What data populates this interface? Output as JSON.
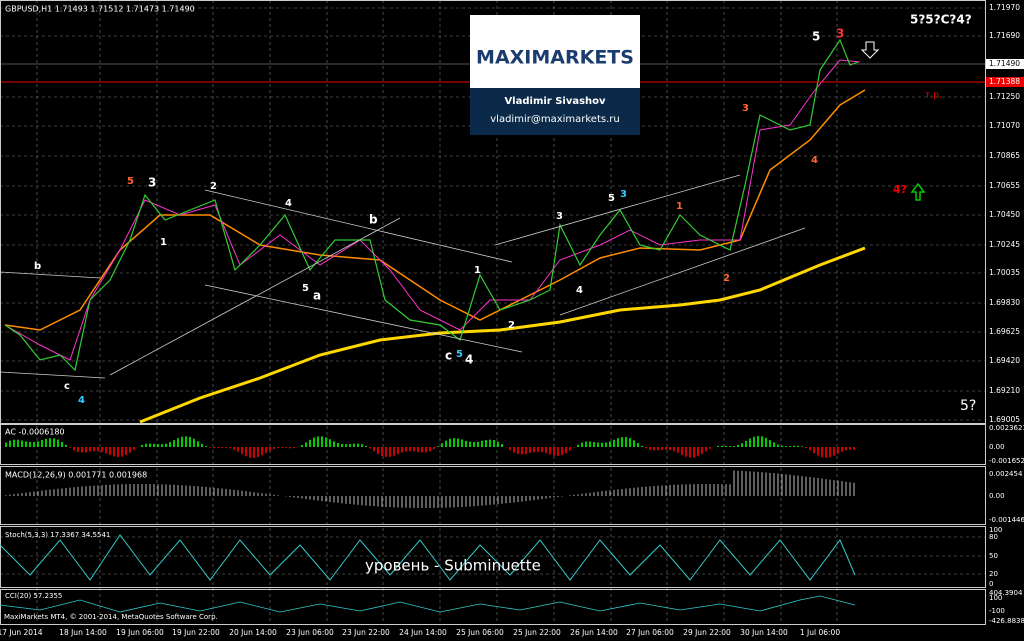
{
  "header": {
    "symbol": "GBPUSD,H1  1.71493 1.71512 1.71473 1.71490"
  },
  "logo": {
    "brand": "MAXIMARKETS",
    "author": "Vladimir Sivashov",
    "email": "vladimir@maximarkets.ru"
  },
  "price_axis": [
    "1.71970",
    "1.71690",
    "1.71490",
    "1.71388",
    "1.71250",
    "1.71070",
    "1.70865",
    "1.70655",
    "1.70450",
    "1.70245",
    "1.70035",
    "1.69830",
    "1.69625",
    "1.69420",
    "1.69210",
    "1.69005"
  ],
  "time_axis": [
    "17 Jun 2014",
    "18 Jun 14:00",
    "19 Jun 06:00",
    "19 Jun 22:00",
    "20 Jun 14:00",
    "23 Jun 06:00",
    "23 Jun 22:00",
    "24 Jun 14:00",
    "25 Jun 06:00",
    "25 Jun 22:00",
    "26 Jun 14:00",
    "27 Jun 06:00",
    "29 Jun 22:00",
    "30 Jun 14:00",
    "1 Jul 06:00"
  ],
  "annotations": {
    "forecast": "5?5?C?4?",
    "target": "т.р.",
    "next_up": "4?",
    "next_down": "5?",
    "level": "уровень - Subminuette"
  },
  "waves": [
    "b",
    "c",
    "4",
    "5",
    "3",
    "1",
    "2",
    "4",
    "5",
    "a",
    "b",
    "c",
    "5",
    "4",
    "1",
    "2",
    "3",
    "4",
    "5",
    "3",
    "1",
    "2",
    "3",
    "4",
    "5",
    "3"
  ],
  "indicators": {
    "ac": {
      "label": "AC -0.0006180",
      "ticks": [
        "0.0023621",
        "0.00",
        "-0.0016529"
      ]
    },
    "macd": {
      "label": "MACD(12,26,9) 0.001771 0.001968",
      "ticks": [
        "0.002454",
        "0.00",
        "-0.001446"
      ]
    },
    "stoch": {
      "label": "Stoch(5,3,3) 17.3367 34.5541",
      "ticks": [
        "100",
        "80",
        "50",
        "20",
        "0"
      ]
    },
    "cci": {
      "label": "CCI(20) 57.2355",
      "ticks": [
        "404.3904",
        "100",
        "-100",
        "-426.8838"
      ]
    }
  },
  "footer": "MaxiMarkets MT4, © 2001-2014, MetaQuotes Software Corp."
}
